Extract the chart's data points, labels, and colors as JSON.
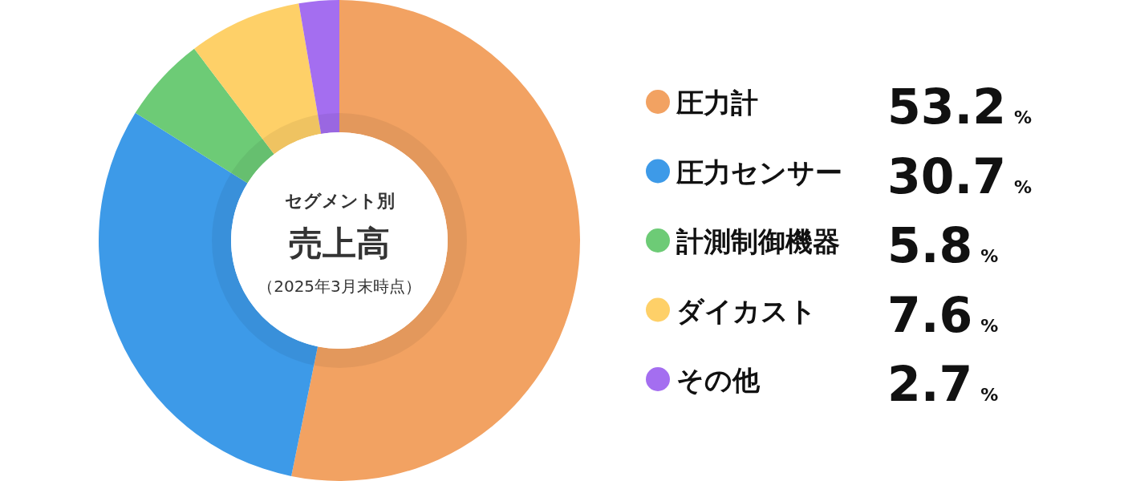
{
  "chart_data": {
    "type": "donut",
    "title": "セグメント別",
    "subtitle": "売上高",
    "annotations": [
      "（2025年3月末時点）"
    ],
    "categories": [
      "圧力計",
      "圧力センサー",
      "計測制御機器",
      "ダイカスト",
      "その他"
    ],
    "values": [
      53.2,
      30.7,
      5.8,
      7.6,
      2.7
    ],
    "colors": [
      "#f2a262",
      "#3d9ae8",
      "#6dcb76",
      "#fed068",
      "#a46ef0"
    ],
    "value_labels": [
      "53.2%",
      "30.7%",
      "5.8%",
      "7.6%",
      "2.7%"
    ],
    "legend": "right"
  }
}
